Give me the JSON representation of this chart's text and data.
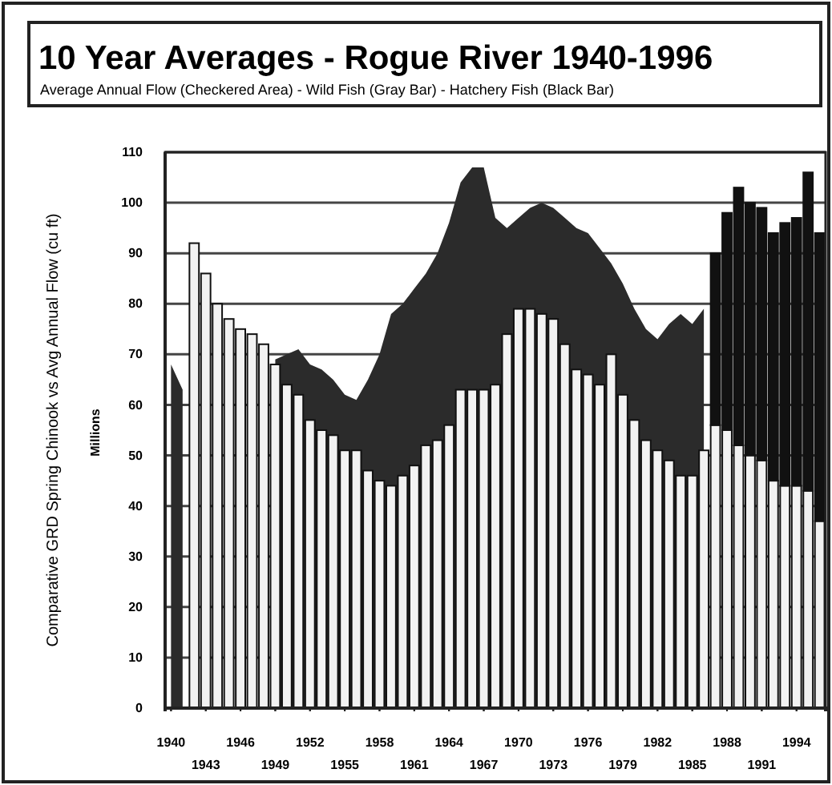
{
  "chart_data": [
    {
      "type": "area",
      "title": "10 Year Averages - Rogue River 1940-1996",
      "subtitle": "Average Annual Flow (Checkered Area) - Wild Fish (Gray Bar) - Hatchery Fish (Black Bar)",
      "ylabel": "Comparative GRD Spring Chinook vs Avg Annual Flow (cu ft)",
      "annotations": [
        "Millions"
      ],
      "categories": [
        "1940",
        null,
        null,
        "1943",
        null,
        null,
        "1946",
        null,
        null,
        "1949",
        null,
        null,
        "1952",
        null,
        null,
        "1955",
        null,
        null,
        "1958",
        null,
        null,
        "1961",
        null,
        null,
        "1964",
        null,
        null,
        "1967",
        null,
        null,
        "1970",
        null,
        null,
        "1973",
        null,
        null,
        "1976",
        null,
        null,
        "1979",
        null,
        null,
        "1982",
        null,
        null,
        "1985",
        null,
        null,
        "1988",
        null,
        null,
        "1991",
        null,
        null,
        "1994",
        null,
        null
      ],
      "ylim": [
        0,
        110
      ],
      "yticks": [
        0,
        10,
        20,
        30,
        40,
        50,
        60,
        70,
        80,
        90,
        100,
        110
      ],
      "grid": "y",
      "tick_labels": false,
      "series": [
        {
          "color": "#2b2b2b",
          "values": [
            68,
            63,
            null,
            null,
            null,
            null,
            null,
            null,
            null,
            69,
            70,
            71,
            68,
            67,
            65,
            62,
            61,
            65,
            70,
            78,
            80,
            83,
            86,
            90,
            96,
            104,
            107,
            107,
            97,
            95,
            97,
            99,
            100,
            99,
            97,
            95,
            94,
            91,
            88,
            84,
            79,
            75,
            73,
            76,
            78,
            76,
            79,
            null,
            null,
            null,
            null,
            null,
            null,
            null,
            null,
            null,
            null
          ]
        }
      ]
    },
    {
      "type": "bar",
      "categories": [
        "1940",
        null,
        null,
        "1943",
        null,
        null,
        "1946",
        null,
        null,
        "1949",
        null,
        null,
        "1952",
        null,
        null,
        "1955",
        null,
        null,
        "1958",
        null,
        null,
        "1961",
        null,
        null,
        "1964",
        null,
        null,
        "1967",
        null,
        null,
        "1970",
        null,
        null,
        "1973",
        null,
        null,
        "1976",
        null,
        null,
        "1979",
        null,
        null,
        "1982",
        null,
        null,
        "1985",
        null,
        null,
        "1988",
        null,
        null,
        "1991",
        null,
        null,
        "1994",
        null,
        null
      ],
      "stacked": true,
      "ylim": [
        0,
        110
      ],
      "yticks": [
        0,
        10,
        20,
        30,
        40,
        50,
        60,
        70,
        80,
        90,
        100,
        110
      ],
      "series": [
        {
          "color": "#f2f2f2",
          "values": [
            null,
            null,
            92,
            86,
            80,
            77,
            75,
            74,
            72,
            68,
            64,
            62,
            57,
            55,
            54,
            51,
            51,
            47,
            45,
            44,
            46,
            48,
            52,
            53,
            56,
            63,
            63,
            63,
            64,
            74,
            79,
            79,
            78,
            77,
            72,
            67,
            66,
            64,
            70,
            62,
            57,
            53,
            51,
            49,
            46,
            46,
            51,
            56,
            55,
            52,
            50,
            49,
            45,
            44,
            44,
            43,
            37
          ]
        },
        {
          "color": "#111111",
          "values": [
            null,
            null,
            null,
            null,
            null,
            null,
            null,
            null,
            null,
            null,
            null,
            null,
            null,
            null,
            null,
            null,
            null,
            null,
            null,
            null,
            null,
            null,
            null,
            null,
            null,
            null,
            null,
            null,
            null,
            null,
            null,
            null,
            null,
            null,
            null,
            null,
            null,
            null,
            null,
            null,
            null,
            null,
            null,
            null,
            null,
            null,
            null,
            34,
            43,
            51,
            50,
            50,
            49,
            52,
            53,
            63,
            57
          ]
        }
      ]
    }
  ]
}
